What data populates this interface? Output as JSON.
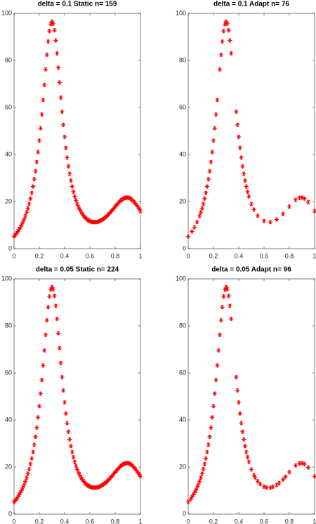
{
  "chart_data": [
    {
      "type": "scatter",
      "title": "delta = 0.1 Static n= 159",
      "color": "#ff0000",
      "xlim": [
        0,
        1
      ],
      "ylim": [
        0,
        100
      ],
      "xticks": [
        0,
        0.2,
        0.4,
        0.6,
        0.8,
        1
      ],
      "yticks": [
        0,
        20,
        40,
        60,
        80,
        100
      ],
      "x": [
        0,
        0.01,
        0.02,
        0.03,
        0.04,
        0.05,
        0.06,
        0.07,
        0.08,
        0.09,
        0.1,
        0.11,
        0.12,
        0.13,
        0.14,
        0.15,
        0.16,
        0.17,
        0.18,
        0.19,
        0.2,
        0.21,
        0.22,
        0.23,
        0.24,
        0.25,
        0.26,
        0.27,
        0.28,
        0.29,
        0.3,
        0.31,
        0.32,
        0.33,
        0.34,
        0.35,
        0.36,
        0.37,
        0.38,
        0.39,
        0.4,
        0.41,
        0.42,
        0.43,
        0.44,
        0.45,
        0.46,
        0.47,
        0.48,
        0.49,
        0.5,
        0.51,
        0.52,
        0.53,
        0.54,
        0.55,
        0.56,
        0.57,
        0.58,
        0.59,
        0.6,
        0.61,
        0.62,
        0.63,
        0.64,
        0.65,
        0.66,
        0.67,
        0.68,
        0.69,
        0.7,
        0.71,
        0.72,
        0.73,
        0.74,
        0.75,
        0.76,
        0.77,
        0.78,
        0.79,
        0.8,
        0.81,
        0.82,
        0.83,
        0.84,
        0.85,
        0.86,
        0.87,
        0.88,
        0.89,
        0.9,
        0.91,
        0.92,
        0.93,
        0.94,
        0.95,
        0.96,
        0.97,
        0.98,
        0.99,
        1
      ],
      "values": [
        5.2,
        5.8,
        6.5,
        7.3,
        8.2,
        9.1,
        10.1,
        11.3,
        12.5,
        13.9,
        15.5,
        17.2,
        19.1,
        21.3,
        23.7,
        26.4,
        29.5,
        32.9,
        36.8,
        41.1,
        45.9,
        51.2,
        57.0,
        63.2,
        69.6,
        76.2,
        82.4,
        88.0,
        92.5,
        95.4,
        96.5,
        95.6,
        92.8,
        88.5,
        83.0,
        76.9,
        70.6,
        64.2,
        58.2,
        52.6,
        47.5,
        42.8,
        38.7,
        35.0,
        31.8,
        28.9,
        26.4,
        24.2,
        22.2,
        20.5,
        19.0,
        17.7,
        16.6,
        15.6,
        14.7,
        14.0,
        13.3,
        12.8,
        12.3,
        12.0,
        11.7,
        11.5,
        11.3,
        11.3,
        11.3,
        11.3,
        11.4,
        11.6,
        11.8,
        12.1,
        12.4,
        12.8,
        13.2,
        13.6,
        14.2,
        14.7,
        15.3,
        15.9,
        16.5,
        17.2,
        17.9,
        18.5,
        19.1,
        19.7,
        20.3,
        20.7,
        21.1,
        21.4,
        21.6,
        21.7,
        21.7,
        21.6,
        21.3,
        20.9,
        20.4,
        19.8,
        19.2,
        18.5,
        17.7,
        16.9,
        16.0
      ]
    },
    {
      "type": "scatter",
      "title": "delta = 0.1 Adapt n= 76",
      "color": "#ff0000",
      "xlim": [
        0,
        1
      ],
      "ylim": [
        0,
        100
      ],
      "xticks": [
        0,
        0.2,
        0.4,
        0.6,
        0.8,
        1
      ],
      "yticks": [
        0,
        20,
        40,
        60,
        80,
        100
      ],
      "x": [
        0,
        0.03,
        0.05,
        0.07,
        0.09,
        0.1,
        0.11,
        0.12,
        0.13,
        0.14,
        0.15,
        0.16,
        0.17,
        0.18,
        0.19,
        0.2,
        0.21,
        0.22,
        0.23,
        0.25,
        0.26,
        0.27,
        0.28,
        0.29,
        0.3,
        0.31,
        0.32,
        0.33,
        0.34,
        0.38,
        0.39,
        0.4,
        0.41,
        0.42,
        0.43,
        0.44,
        0.45,
        0.46,
        0.47,
        0.48,
        0.5,
        0.52,
        0.55,
        0.6,
        0.65,
        0.7,
        0.75,
        0.8,
        0.85,
        0.88,
        0.9,
        0.92,
        0.95,
        1
      ],
      "values": [
        5.2,
        7.3,
        9.1,
        11.3,
        13.9,
        15.5,
        17.2,
        19.1,
        21.3,
        23.7,
        26.4,
        29.5,
        32.9,
        36.8,
        41.1,
        45.9,
        51.2,
        57.0,
        63.2,
        76.2,
        82.4,
        88.0,
        92.5,
        95.4,
        96.5,
        95.6,
        92.8,
        88.5,
        83.0,
        58.2,
        52.6,
        47.5,
        42.8,
        38.7,
        35.0,
        31.8,
        28.9,
        26.4,
        24.2,
        22.2,
        19.0,
        16.6,
        14.0,
        11.7,
        11.3,
        12.4,
        14.7,
        17.9,
        20.7,
        21.6,
        21.7,
        21.3,
        19.8,
        16.0
      ]
    },
    {
      "type": "scatter",
      "title": "delta = 0.05 Static n= 224",
      "color": "#ff0000",
      "xlim": [
        0,
        1
      ],
      "ylim": [
        0,
        100
      ],
      "xticks": [
        0,
        0.2,
        0.4,
        0.6,
        0.8,
        1
      ],
      "yticks": [
        0,
        20,
        40,
        60,
        80,
        100
      ],
      "x": [
        0,
        0.01,
        0.02,
        0.03,
        0.04,
        0.05,
        0.06,
        0.07,
        0.08,
        0.09,
        0.1,
        0.11,
        0.12,
        0.13,
        0.14,
        0.15,
        0.16,
        0.17,
        0.18,
        0.19,
        0.2,
        0.21,
        0.22,
        0.23,
        0.24,
        0.25,
        0.26,
        0.27,
        0.28,
        0.29,
        0.3,
        0.31,
        0.32,
        0.33,
        0.34,
        0.35,
        0.36,
        0.37,
        0.38,
        0.39,
        0.4,
        0.41,
        0.42,
        0.43,
        0.44,
        0.45,
        0.46,
        0.47,
        0.48,
        0.49,
        0.5,
        0.51,
        0.52,
        0.53,
        0.54,
        0.55,
        0.56,
        0.57,
        0.58,
        0.59,
        0.6,
        0.61,
        0.62,
        0.63,
        0.64,
        0.65,
        0.66,
        0.67,
        0.68,
        0.69,
        0.7,
        0.71,
        0.72,
        0.73,
        0.74,
        0.75,
        0.76,
        0.77,
        0.78,
        0.79,
        0.8,
        0.81,
        0.82,
        0.83,
        0.84,
        0.85,
        0.86,
        0.87,
        0.88,
        0.89,
        0.9,
        0.91,
        0.92,
        0.93,
        0.94,
        0.95,
        0.96,
        0.97,
        0.98,
        0.99,
        1
      ],
      "values": [
        5.2,
        5.8,
        6.5,
        7.3,
        8.2,
        9.1,
        10.1,
        11.3,
        12.5,
        13.9,
        15.5,
        17.2,
        19.1,
        21.3,
        23.7,
        26.4,
        29.5,
        32.9,
        36.8,
        41.1,
        45.9,
        51.2,
        57.0,
        63.2,
        69.6,
        76.2,
        82.4,
        88.0,
        92.5,
        95.4,
        96.5,
        95.6,
        92.8,
        88.5,
        83.0,
        76.9,
        70.6,
        64.2,
        58.2,
        52.6,
        47.5,
        42.8,
        38.7,
        35.0,
        31.8,
        28.9,
        26.4,
        24.2,
        22.2,
        20.5,
        19.0,
        17.7,
        16.6,
        15.6,
        14.7,
        14.0,
        13.3,
        12.8,
        12.3,
        12.0,
        11.7,
        11.5,
        11.3,
        11.3,
        11.3,
        11.3,
        11.4,
        11.6,
        11.8,
        12.1,
        12.4,
        12.8,
        13.2,
        13.6,
        14.2,
        14.7,
        15.3,
        15.9,
        16.5,
        17.2,
        17.9,
        18.5,
        19.1,
        19.7,
        20.3,
        20.7,
        21.1,
        21.4,
        21.6,
        21.7,
        21.7,
        21.6,
        21.3,
        20.9,
        20.4,
        19.8,
        19.2,
        18.5,
        17.7,
        16.9,
        16.0
      ]
    },
    {
      "type": "scatter",
      "title": "delta = 0.05 Adapt n= 96",
      "color": "#ff0000",
      "xlim": [
        0,
        1
      ],
      "ylim": [
        0,
        100
      ],
      "xticks": [
        0,
        0.2,
        0.4,
        0.6,
        0.8,
        1
      ],
      "yticks": [
        0,
        20,
        40,
        60,
        80,
        100
      ],
      "x": [
        0,
        0.02,
        0.03,
        0.04,
        0.05,
        0.06,
        0.07,
        0.08,
        0.09,
        0.1,
        0.11,
        0.12,
        0.13,
        0.14,
        0.15,
        0.16,
        0.17,
        0.18,
        0.19,
        0.2,
        0.21,
        0.22,
        0.23,
        0.24,
        0.25,
        0.26,
        0.27,
        0.28,
        0.29,
        0.3,
        0.31,
        0.32,
        0.33,
        0.34,
        0.38,
        0.39,
        0.4,
        0.41,
        0.42,
        0.43,
        0.44,
        0.45,
        0.46,
        0.47,
        0.48,
        0.5,
        0.52,
        0.53,
        0.55,
        0.57,
        0.6,
        0.62,
        0.65,
        0.67,
        0.7,
        0.72,
        0.75,
        0.77,
        0.8,
        0.85,
        0.88,
        0.9,
        0.92,
        0.95,
        1
      ],
      "values": [
        5.2,
        6.5,
        7.3,
        8.2,
        9.1,
        10.1,
        11.3,
        12.5,
        13.9,
        15.5,
        17.2,
        19.1,
        21.3,
        23.7,
        26.4,
        29.5,
        32.9,
        36.8,
        41.1,
        45.9,
        51.2,
        57.0,
        63.2,
        69.6,
        76.2,
        82.4,
        88.0,
        92.5,
        95.4,
        96.5,
        95.6,
        92.8,
        88.5,
        83.0,
        58.2,
        52.6,
        47.5,
        42.8,
        38.7,
        35.0,
        31.8,
        28.9,
        26.4,
        24.2,
        22.2,
        19.0,
        16.6,
        15.6,
        14.0,
        12.8,
        11.7,
        11.3,
        11.3,
        11.6,
        12.4,
        13.2,
        14.7,
        15.9,
        17.9,
        20.7,
        21.6,
        21.7,
        21.3,
        19.8,
        16.0
      ]
    }
  ]
}
